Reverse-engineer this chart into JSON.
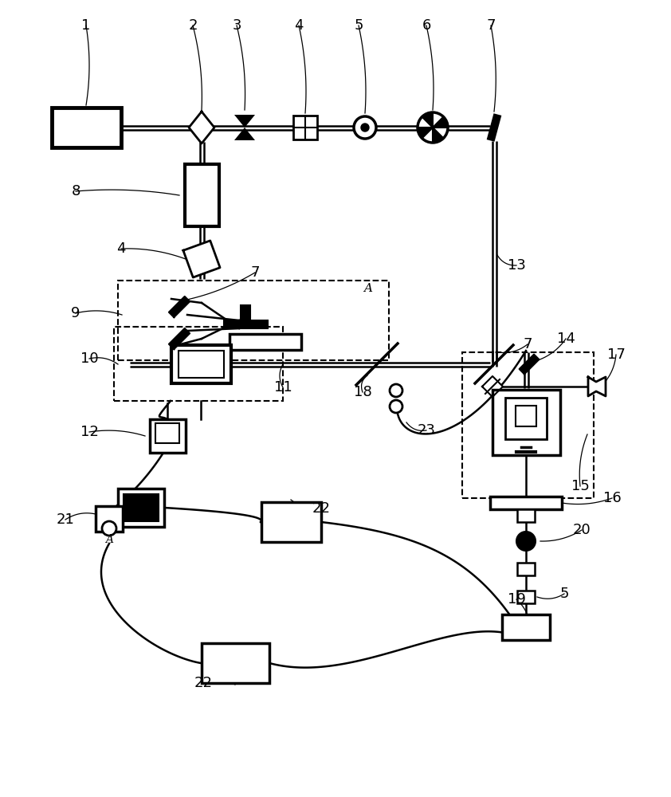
{
  "bg_color": "#ffffff",
  "lc": "#000000",
  "fs_label": 13,
  "figsize": [
    8.42,
    10.0
  ],
  "dpi": 100
}
